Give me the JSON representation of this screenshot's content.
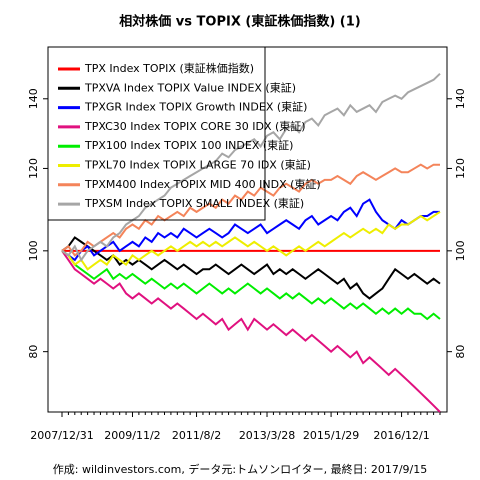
{
  "chart_data": {
    "type": "line",
    "title": "相対株価 vs TOPIX (東証株価指数) (1)",
    "note": "作成: wildinvestors.com, データ元:トムソンロイター, 最終日: 2017/9/15",
    "categories": [
      "2007/12/31",
      null,
      null,
      null,
      null,
      null,
      null,
      null,
      null,
      null,
      null,
      "2009/11/2",
      null,
      null,
      null,
      null,
      null,
      null,
      null,
      null,
      null,
      "2011/8/2",
      null,
      null,
      null,
      null,
      null,
      null,
      null,
      null,
      null,
      null,
      "2013/3/28",
      null,
      null,
      null,
      null,
      null,
      null,
      null,
      null,
      null,
      "2015/1/29",
      null,
      null,
      null,
      null,
      null,
      null,
      null,
      null,
      null,
      null,
      "2016/12/1",
      null,
      null,
      null,
      null,
      null,
      null
    ],
    "log": true,
    "legend": "top-left",
    "ylim": [
      70,
      157
    ],
    "yticks": [
      80,
      100,
      120,
      140
    ],
    "series": [
      {
        "name": "TPX Index TOPIX (東証株価指数)",
        "color": "#ff0000",
        "values": [
          100,
          100,
          100,
          100,
          100,
          100,
          100,
          100,
          100,
          100,
          100,
          100,
          100,
          100,
          100,
          100,
          100,
          100,
          100,
          100,
          100,
          100,
          100,
          100,
          100,
          100,
          100,
          100,
          100,
          100,
          100,
          100,
          100,
          100,
          100,
          100,
          100,
          100,
          100,
          100,
          100,
          100,
          100,
          100,
          100,
          100,
          100,
          100,
          100,
          100,
          100,
          100,
          100,
          100,
          100,
          100,
          100,
          100,
          100,
          100
        ]
      },
      {
        "name": "TPXVA Index TOPIX Value INDEX (東証)",
        "color": "#000000",
        "values": [
          100,
          101,
          103,
          102,
          101,
          100,
          99,
          98,
          99,
          97,
          98,
          97,
          98,
          97,
          96,
          97,
          98,
          97,
          96,
          97,
          96,
          95,
          96,
          96,
          97,
          96,
          95,
          96,
          97,
          96,
          95,
          96,
          97,
          95,
          96,
          95,
          96,
          95,
          94,
          95,
          96,
          95,
          94,
          93,
          94,
          92,
          93,
          91,
          90,
          91,
          92,
          94,
          96,
          95,
          94,
          95,
          94,
          93,
          94,
          93
        ]
      },
      {
        "name": "TPXGR Index TOPIX Growth INDEX (東証)",
        "color": "#0000ff",
        "values": [
          100,
          99,
          98,
          100,
          101,
          99,
          100,
          101,
          102,
          100,
          101,
          102,
          101,
          103,
          102,
          104,
          103,
          104,
          103,
          105,
          104,
          103,
          104,
          105,
          104,
          103,
          104,
          106,
          105,
          104,
          105,
          106,
          104,
          105,
          106,
          107,
          106,
          105,
          107,
          108,
          106,
          107,
          108,
          107,
          109,
          110,
          108,
          111,
          112,
          109,
          107,
          106,
          105,
          107,
          106,
          107,
          108,
          108,
          109,
          109
        ]
      },
      {
        "name": "TPXC30 Index TOPIX CORE 30 IDX (東証)",
        "color": "#e0117f",
        "values": [
          100,
          98,
          96,
          95,
          94,
          93,
          94,
          93,
          92,
          93,
          91,
          90,
          91,
          90,
          89,
          90,
          89,
          88,
          89,
          88,
          87,
          86,
          87,
          86,
          85,
          86,
          84,
          85,
          86,
          84,
          86,
          85,
          84,
          85,
          84,
          83,
          84,
          83,
          82,
          83,
          82,
          81,
          80,
          81,
          80,
          79,
          80,
          78,
          79,
          78,
          77,
          76,
          77,
          76,
          75,
          74,
          73,
          72,
          71,
          70
        ]
      },
      {
        "name": "TPX100 Index TOPIX 100 INDEX (東証)",
        "color": "#00ee00",
        "values": [
          100,
          99,
          97,
          96,
          95,
          94,
          95,
          96,
          94,
          95,
          94,
          95,
          94,
          93,
          94,
          93,
          92,
          93,
          92,
          93,
          92,
          91,
          92,
          93,
          92,
          91,
          92,
          91,
          92,
          93,
          92,
          91,
          92,
          91,
          90,
          91,
          90,
          91,
          90,
          89,
          90,
          89,
          90,
          89,
          88,
          89,
          88,
          89,
          88,
          87,
          88,
          87,
          88,
          87,
          88,
          87,
          87,
          86,
          87,
          86
        ]
      },
      {
        "name": "TPXL70 Index TOPIX LARGE 70 IDX (東証)",
        "color": "#eeee00",
        "values": [
          100,
          99,
          97,
          98,
          96,
          97,
          98,
          97,
          99,
          98,
          97,
          99,
          98,
          99,
          100,
          99,
          100,
          101,
          100,
          101,
          102,
          101,
          102,
          101,
          102,
          101,
          102,
          103,
          102,
          101,
          102,
          101,
          100,
          101,
          100,
          99,
          100,
          101,
          100,
          101,
          102,
          101,
          102,
          103,
          104,
          103,
          104,
          105,
          104,
          105,
          104,
          106,
          105,
          106,
          106,
          107,
          108,
          107,
          108,
          109
        ]
      },
      {
        "name": "TPXM400 Index TOPIX MID 400 INDX (東証)",
        "color": "#f4845a",
        "values": [
          100,
          101,
          99,
          100,
          102,
          101,
          102,
          103,
          104,
          103,
          105,
          106,
          105,
          107,
          106,
          108,
          107,
          108,
          109,
          108,
          110,
          109,
          110,
          111,
          110,
          112,
          111,
          113,
          112,
          114,
          113,
          115,
          114,
          113,
          115,
          116,
          115,
          114,
          116,
          117,
          116,
          117,
          117,
          118,
          117,
          116,
          118,
          119,
          118,
          117,
          118,
          119,
          120,
          119,
          119,
          120,
          121,
          120,
          121,
          121
        ]
      },
      {
        "name": "TPXSM Index TOPIX SMALL INDEX (東証)",
        "color": "#a6a6a6",
        "values": [
          100,
          99,
          101,
          98,
          100,
          101,
          102,
          101,
          103,
          104,
          106,
          107,
          108,
          110,
          111,
          112,
          113,
          115,
          116,
          117,
          118,
          119,
          120,
          121,
          122,
          124,
          123,
          125,
          126,
          127,
          128,
          126,
          129,
          130,
          128,
          131,
          132,
          130,
          133,
          134,
          132,
          135,
          136,
          137,
          135,
          138,
          136,
          137,
          138,
          136,
          139,
          140,
          141,
          140,
          142,
          143,
          144,
          145,
          146,
          148
        ]
      }
    ]
  }
}
